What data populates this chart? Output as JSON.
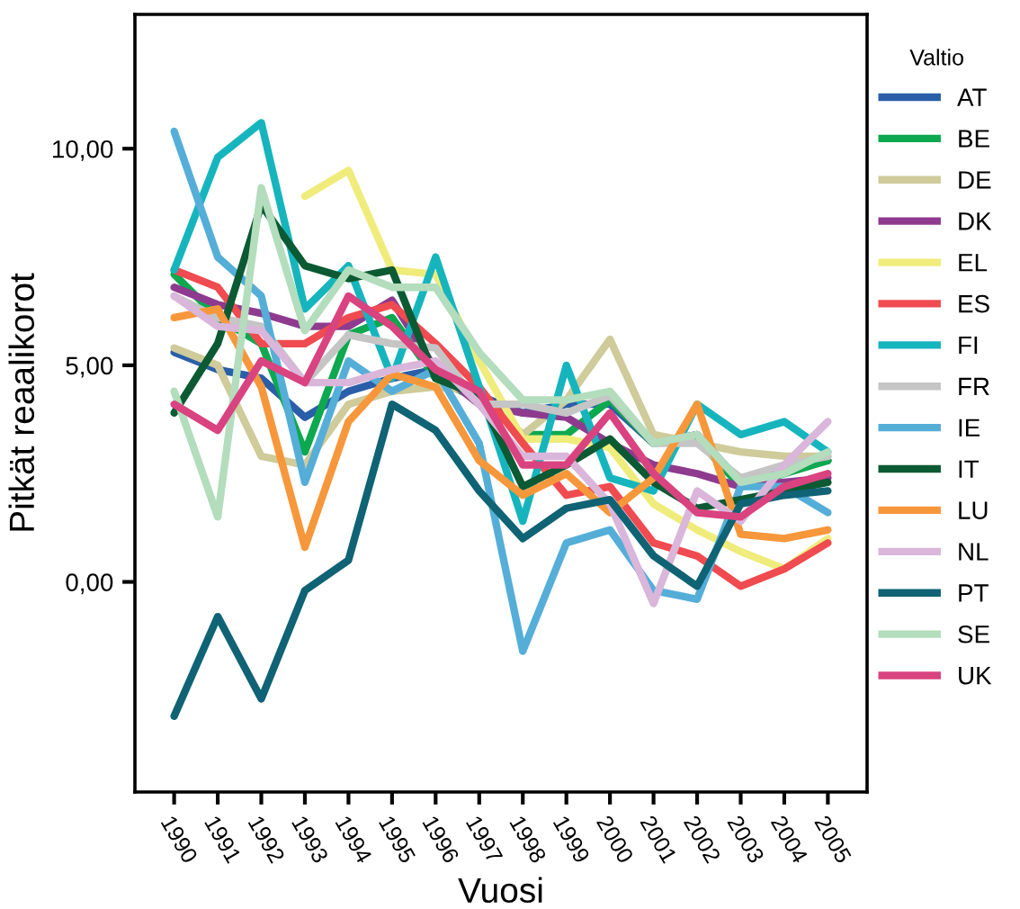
{
  "chart_data": {
    "type": "line",
    "xlabel": "Vuosi",
    "ylabel": "Pitkät reaalikorot",
    "legend_title": "Valtio",
    "legend": "right",
    "grid": false,
    "marker": "none",
    "line_style": "solid",
    "categories": [
      "1990",
      "1991",
      "1992",
      "1993",
      "1994",
      "1995",
      "1996",
      "1997",
      "1998",
      "1999",
      "2000",
      "2001",
      "2002",
      "2003",
      "2004",
      "2005"
    ],
    "ylim": [
      -4.85,
      13.1
    ],
    "yticks": [
      {
        "value": 0,
        "label": "0,00"
      },
      {
        "value": 5,
        "label": "5,00"
      },
      {
        "value": 10,
        "label": "10,00"
      }
    ],
    "series": [
      {
        "name": "AT",
        "color": "#2a5ea8",
        "values": [
          5.3,
          4.9,
          4.7,
          3.8,
          4.4,
          4.7,
          4.9,
          4.3,
          3.9,
          4.1,
          4.1,
          3.2,
          3.4,
          2.3,
          2.6,
          2.8
        ]
      },
      {
        "name": "BE",
        "color": "#0da84f",
        "values": [
          7.1,
          6.1,
          5.5,
          3.0,
          5.7,
          6.1,
          4.7,
          4.2,
          3.4,
          3.4,
          4.2,
          3.2,
          3.3,
          2.2,
          2.5,
          2.8
        ]
      },
      {
        "name": "DE",
        "color": "#cfcb9a",
        "values": [
          5.4,
          5.0,
          2.9,
          2.7,
          4.1,
          4.4,
          4.5,
          4.4,
          3.4,
          4.2,
          5.6,
          3.4,
          3.2,
          3.0,
          2.9,
          2.9
        ]
      },
      {
        "name": "DK",
        "color": "#8e3b8f",
        "values": [
          6.8,
          6.4,
          6.2,
          5.9,
          5.9,
          6.5,
          4.9,
          4.1,
          3.9,
          3.8,
          3.2,
          2.7,
          2.5,
          2.2,
          2.3,
          2.4
        ]
      },
      {
        "name": "EL",
        "color": "#f0ec7c",
        "values": [
          null,
          null,
          null,
          8.9,
          9.5,
          7.2,
          7.1,
          5.1,
          3.3,
          3.3,
          3.1,
          1.8,
          1.2,
          0.7,
          0.3,
          1.0
        ]
      },
      {
        "name": "ES",
        "color": "#ef4b50",
        "values": [
          7.2,
          6.8,
          5.5,
          5.5,
          6.1,
          6.4,
          5.5,
          4.5,
          3.2,
          2.0,
          2.2,
          0.9,
          0.6,
          -0.1,
          0.3,
          0.9
        ]
      },
      {
        "name": "FI",
        "color": "#16b5bd",
        "values": [
          7.2,
          9.8,
          10.6,
          6.3,
          7.3,
          4.7,
          7.5,
          4.5,
          1.4,
          5.0,
          2.4,
          2.1,
          4.1,
          3.4,
          3.7,
          3.0
        ]
      },
      {
        "name": "FR",
        "color": "#c5c5c5",
        "values": [
          6.6,
          6.1,
          5.9,
          4.6,
          5.7,
          5.5,
          5.4,
          4.1,
          4.1,
          3.9,
          4.3,
          3.2,
          3.2,
          2.4,
          2.7,
          2.9
        ]
      },
      {
        "name": "IE",
        "color": "#55aed8",
        "values": [
          10.4,
          7.5,
          6.6,
          2.3,
          5.1,
          4.4,
          4.9,
          3.2,
          -1.6,
          0.9,
          1.2,
          -0.2,
          -0.4,
          2.2,
          2.2,
          1.6
        ]
      },
      {
        "name": "IT",
        "color": "#0b5a33",
        "values": [
          3.9,
          5.5,
          8.7,
          7.3,
          7.0,
          7.2,
          4.7,
          4.3,
          2.2,
          2.7,
          3.3,
          2.3,
          1.7,
          1.9,
          2.1,
          2.3
        ]
      },
      {
        "name": "LU",
        "color": "#f7973b",
        "values": [
          6.1,
          6.3,
          4.5,
          0.8,
          3.7,
          4.8,
          4.5,
          2.8,
          2.0,
          2.5,
          1.6,
          2.4,
          4.1,
          1.1,
          1.0,
          1.2
        ]
      },
      {
        "name": "NL",
        "color": "#d9b6da",
        "values": [
          6.6,
          5.9,
          5.8,
          4.6,
          4.6,
          4.9,
          5.1,
          4.1,
          2.9,
          2.9,
          1.8,
          -0.5,
          2.1,
          1.4,
          2.7,
          3.7
        ]
      },
      {
        "name": "PT",
        "color": "#0f6374",
        "values": [
          -3.1,
          -0.8,
          -2.7,
          -0.2,
          0.5,
          4.1,
          3.5,
          2.1,
          1.0,
          1.7,
          1.9,
          0.6,
          -0.1,
          1.8,
          2.0,
          2.1
        ]
      },
      {
        "name": "SE",
        "color": "#b3ddbd",
        "values": [
          4.4,
          1.5,
          9.1,
          5.8,
          7.2,
          6.8,
          6.8,
          5.3,
          4.2,
          4.2,
          4.4,
          3.2,
          3.4,
          2.3,
          2.5,
          3.0
        ]
      },
      {
        "name": "UK",
        "color": "#d9437f",
        "values": [
          4.1,
          3.5,
          5.1,
          4.6,
          6.6,
          5.9,
          4.9,
          4.4,
          2.7,
          2.7,
          3.9,
          2.5,
          1.6,
          1.5,
          2.2,
          2.5
        ]
      }
    ]
  }
}
